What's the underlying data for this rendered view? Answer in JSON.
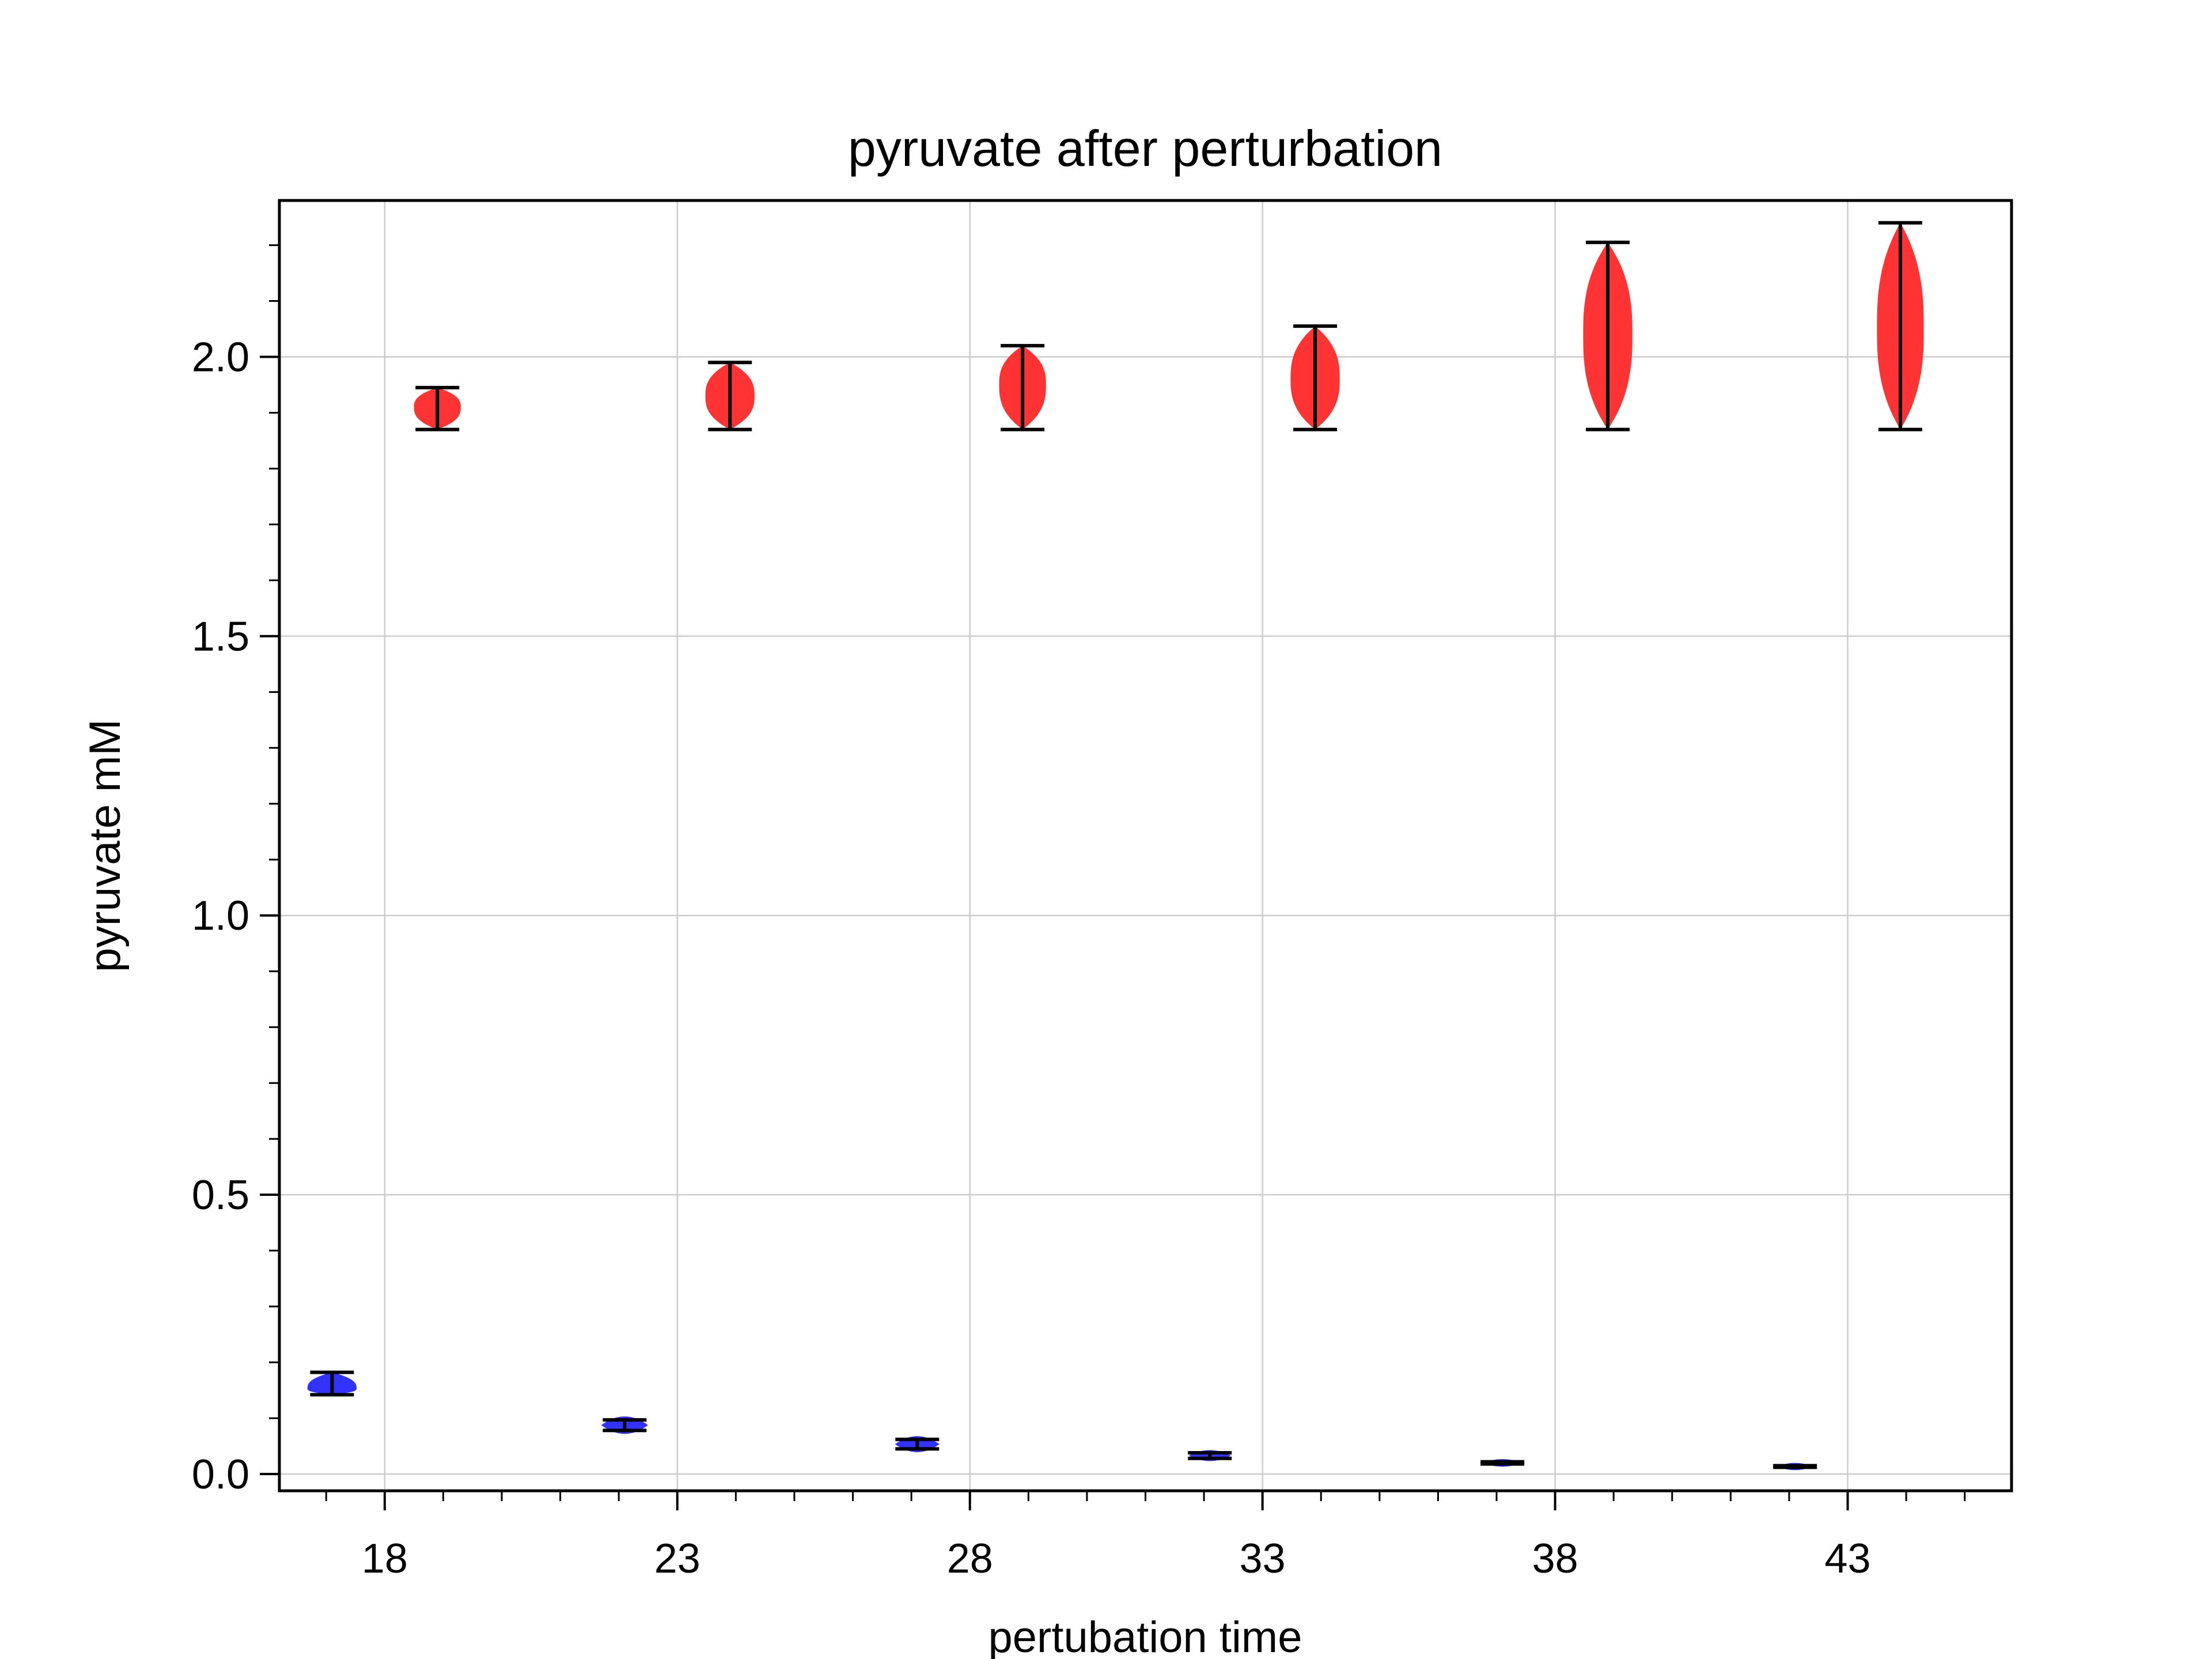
{
  "chart_data": {
    "type": "violin",
    "title": "pyruvate after perturbation",
    "xlabel": "pertubation time",
    "ylabel": "pyruvate mM",
    "xlim": [
      16.2,
      45.8
    ],
    "ylim": [
      -0.03,
      2.28
    ],
    "xticks": [
      18,
      23,
      28,
      33,
      38,
      43
    ],
    "yticks": [
      0.0,
      0.5,
      1.0,
      1.5,
      2.0
    ],
    "ytick_labels": [
      "0.0",
      "0.5",
      "1.0",
      "1.5",
      "2.0"
    ],
    "grid": true,
    "colors": {
      "low": "#3333ff",
      "high": "#ff3333",
      "whisker": "#000000"
    },
    "series": [
      {
        "color": "#3333ff",
        "x": [
          17.1,
          22.1,
          27.1,
          32.1,
          37.1,
          42.1
        ],
        "min": [
          0.142,
          0.078,
          0.045,
          0.028,
          0.018,
          0.012
        ],
        "max": [
          0.182,
          0.097,
          0.062,
          0.038,
          0.022,
          0.015
        ],
        "peak": [
          0.153,
          0.083,
          0.051,
          0.031,
          0.019,
          0.013
        ],
        "half_width": [
          0.42,
          0.4,
          0.38,
          0.36,
          0.34,
          0.3
        ]
      },
      {
        "color": "#ff3333",
        "x": [
          18.9,
          23.9,
          28.9,
          33.9,
          38.9,
          43.9
        ],
        "min": [
          1.87,
          1.87,
          1.87,
          1.87,
          1.87,
          1.87
        ],
        "max": [
          1.945,
          1.99,
          2.02,
          2.055,
          2.205,
          2.24
        ],
        "peak": [
          1.91,
          1.93,
          1.95,
          1.96,
          2.04,
          2.05
        ],
        "half_width": [
          0.4,
          0.42,
          0.4,
          0.42,
          0.42,
          0.4
        ]
      }
    ]
  }
}
